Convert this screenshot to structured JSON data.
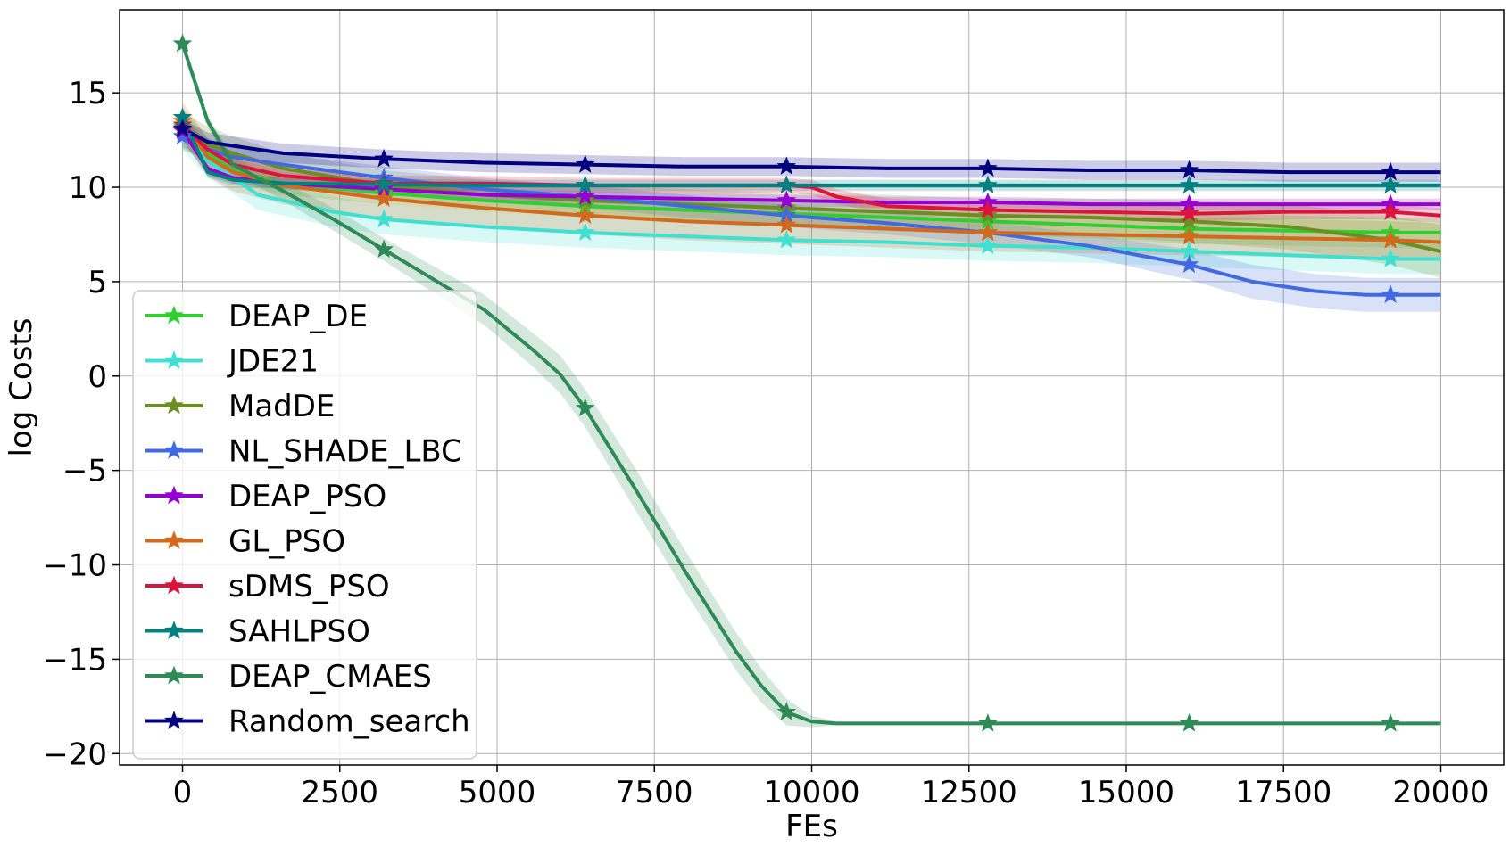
{
  "chart_data": {
    "type": "line",
    "xlabel": "FEs",
    "ylabel": "log Costs",
    "xlim": [
      -1000,
      21000
    ],
    "ylim": [
      -20.6,
      19.4
    ],
    "xticks": [
      0,
      2500,
      5000,
      7500,
      10000,
      12500,
      15000,
      17500,
      20000
    ],
    "xtick_labels": [
      "0",
      "2500",
      "5000",
      "7500",
      "10000",
      "12500",
      "15000",
      "17500",
      "20000"
    ],
    "yticks": [
      15,
      10,
      5,
      0,
      -5,
      -10,
      -15,
      -20
    ],
    "ytick_labels": [
      "15",
      "10",
      "5",
      "0",
      "−5",
      "−10",
      "−15",
      "−20"
    ],
    "grid": true,
    "legend_location": "lower-left",
    "marker": "star",
    "markers_x": [
      0,
      3200,
      6400,
      9600,
      12800,
      16000,
      19200
    ],
    "series": [
      {
        "name": "DEAP_DE",
        "color": "#32cd32",
        "x": [
          0,
          400,
          800,
          1600,
          3200,
          4800,
          6400,
          8000,
          9600,
          11200,
          12800,
          14400,
          16000,
          17600,
          19200,
          20000
        ],
        "y": [
          13.2,
          11.8,
          10.9,
          10.2,
          9.7,
          9.3,
          9.0,
          8.8,
          8.6,
          8.4,
          8.2,
          8.0,
          7.8,
          7.7,
          7.6,
          7.6
        ],
        "band": [
          1.0,
          0.8,
          0.7,
          0.6,
          0.6,
          0.6,
          0.6,
          0.6,
          0.6,
          0.7,
          0.7,
          0.7,
          0.8,
          0.8,
          0.8,
          0.8
        ]
      },
      {
        "name": "JDE21",
        "color": "#40e0d0",
        "x": [
          0,
          400,
          800,
          1200,
          1600,
          2400,
          3200,
          4800,
          6400,
          8000,
          9600,
          11200,
          12800,
          14400,
          16000,
          17600,
          19200,
          20000
        ],
        "y": [
          13.0,
          11.4,
          10.5,
          9.6,
          9.3,
          8.7,
          8.3,
          7.9,
          7.6,
          7.4,
          7.2,
          7.1,
          6.9,
          6.8,
          6.6,
          6.4,
          6.2,
          6.2
        ],
        "band": [
          1.0,
          0.9,
          0.8,
          0.8,
          0.8,
          0.8,
          0.8,
          0.8,
          0.8,
          0.8,
          0.8,
          0.8,
          0.8,
          0.8,
          0.8,
          0.8,
          0.8,
          0.8
        ]
      },
      {
        "name": "MadDE",
        "color": "#6b8e23",
        "x": [
          0,
          400,
          800,
          1600,
          3200,
          4800,
          6400,
          8000,
          9600,
          11200,
          12800,
          14400,
          16000,
          17600,
          19200,
          20000
        ],
        "y": [
          13.0,
          12.3,
          11.8,
          11.0,
          10.1,
          9.6,
          9.3,
          9.1,
          8.9,
          8.7,
          8.5,
          8.4,
          8.2,
          7.9,
          7.2,
          6.6
        ],
        "band": [
          1.0,
          0.9,
          0.9,
          0.8,
          0.8,
          0.8,
          0.8,
          0.8,
          0.8,
          0.9,
          0.9,
          1.0,
          1.1,
          1.2,
          1.3,
          1.4
        ]
      },
      {
        "name": "NL_SHADE_LBC",
        "color": "#4169e1",
        "x": [
          0,
          400,
          800,
          1600,
          3200,
          4800,
          6400,
          8000,
          9600,
          11200,
          12800,
          14400,
          16000,
          17000,
          18000,
          18800,
          19200,
          20000
        ],
        "y": [
          12.7,
          12.0,
          11.6,
          11.2,
          10.5,
          9.9,
          9.5,
          9.0,
          8.5,
          8.1,
          7.6,
          6.9,
          5.9,
          5.0,
          4.5,
          4.3,
          4.3,
          4.3
        ],
        "band": [
          0.6,
          0.6,
          0.6,
          0.6,
          0.6,
          0.6,
          0.6,
          0.6,
          0.6,
          0.6,
          0.6,
          0.6,
          0.8,
          0.9,
          0.9,
          0.9,
          0.9,
          0.9
        ]
      },
      {
        "name": "DEAP_PSO",
        "color": "#9400d3",
        "x": [
          0,
          400,
          800,
          1600,
          3200,
          4800,
          6400,
          8000,
          9600,
          11200,
          12800,
          14400,
          16000,
          17600,
          19200,
          20000
        ],
        "y": [
          13.0,
          11.0,
          10.5,
          10.2,
          9.9,
          9.6,
          9.5,
          9.4,
          9.3,
          9.2,
          9.2,
          9.1,
          9.1,
          9.1,
          9.1,
          9.1
        ],
        "band": [
          0.5,
          0.4,
          0.3,
          0.3,
          0.3,
          0.3,
          0.3,
          0.3,
          0.3,
          0.3,
          0.3,
          0.3,
          0.3,
          0.3,
          0.3,
          0.3
        ]
      },
      {
        "name": "GL_PSO",
        "color": "#d2691e",
        "x": [
          0,
          400,
          800,
          1600,
          3200,
          4800,
          6400,
          8000,
          9600,
          11200,
          12800,
          14400,
          16000,
          17600,
          19200,
          20000
        ],
        "y": [
          13.5,
          11.6,
          10.8,
          10.1,
          9.4,
          8.9,
          8.5,
          8.2,
          8.0,
          7.8,
          7.6,
          7.5,
          7.4,
          7.3,
          7.2,
          7.1
        ],
        "band": [
          1.0,
          1.0,
          1.0,
          1.0,
          1.0,
          1.0,
          1.0,
          1.0,
          1.0,
          1.0,
          1.0,
          1.0,
          1.0,
          1.0,
          1.0,
          1.0
        ]
      },
      {
        "name": "sDMS_PSO",
        "color": "#dc143c",
        "x": [
          0,
          400,
          800,
          1600,
          3200,
          4800,
          6400,
          8000,
          9600,
          10000,
          10400,
          11200,
          12800,
          14400,
          16000,
          17600,
          19200,
          20000
        ],
        "y": [
          13.3,
          12.0,
          11.2,
          10.6,
          10.2,
          10.2,
          10.1,
          10.1,
          10.1,
          10.0,
          9.5,
          9.0,
          8.8,
          8.7,
          8.6,
          8.7,
          8.7,
          8.5
        ],
        "band": [
          0.4,
          0.4,
          0.4,
          0.4,
          0.4,
          0.4,
          0.4,
          0.4,
          0.4,
          0.4,
          0.4,
          0.4,
          0.4,
          0.4,
          0.4,
          0.4,
          0.4,
          0.4
        ]
      },
      {
        "name": "SAHLPSO",
        "color": "#008080",
        "x": [
          0,
          400,
          800,
          1600,
          3200,
          4800,
          6400,
          8000,
          9600,
          11200,
          12800,
          14400,
          16000,
          17600,
          19200,
          20000
        ],
        "y": [
          13.7,
          10.8,
          10.4,
          10.2,
          10.15,
          10.1,
          10.1,
          10.1,
          10.1,
          10.1,
          10.1,
          10.1,
          10.1,
          10.1,
          10.1,
          10.1
        ],
        "band": [
          0.4,
          0.3,
          0.3,
          0.3,
          0.3,
          0.3,
          0.3,
          0.3,
          0.3,
          0.3,
          0.3,
          0.3,
          0.3,
          0.3,
          0.3,
          0.3
        ]
      },
      {
        "name": "DEAP_CMAES",
        "color": "#2e8b57",
        "x": [
          0,
          400,
          800,
          1600,
          2400,
          3200,
          4000,
          4800,
          5600,
          6000,
          6400,
          7200,
          8000,
          8800,
          9200,
          9600,
          10000,
          10400,
          12800,
          16000,
          19200,
          20000
        ],
        "y": [
          17.6,
          13.5,
          11.2,
          9.8,
          8.3,
          6.7,
          5.1,
          3.5,
          1.3,
          0.1,
          -1.7,
          -6.0,
          -10.4,
          -14.6,
          -16.4,
          -17.8,
          -18.3,
          -18.4,
          -18.4,
          -18.4,
          -18.4,
          -18.4
        ],
        "band": [
          0.0,
          0.3,
          0.4,
          0.5,
          0.6,
          0.6,
          0.7,
          0.8,
          0.9,
          1.0,
          1.0,
          1.1,
          1.1,
          1.0,
          0.9,
          0.7,
          0.3,
          0.1,
          0.0,
          0.0,
          0.0,
          0.0
        ]
      },
      {
        "name": "Random_search",
        "color": "#000080",
        "x": [
          0,
          400,
          800,
          1600,
          3200,
          4800,
          6400,
          8000,
          9600,
          11200,
          12800,
          14400,
          16000,
          17600,
          19200,
          20000
        ],
        "y": [
          13.1,
          12.4,
          12.2,
          11.8,
          11.5,
          11.3,
          11.2,
          11.1,
          11.1,
          11.0,
          11.0,
          10.9,
          10.9,
          10.8,
          10.8,
          10.8
        ],
        "band": [
          0.5,
          0.5,
          0.5,
          0.5,
          0.5,
          0.5,
          0.5,
          0.5,
          0.5,
          0.5,
          0.5,
          0.5,
          0.5,
          0.5,
          0.5,
          0.5
        ]
      }
    ]
  }
}
